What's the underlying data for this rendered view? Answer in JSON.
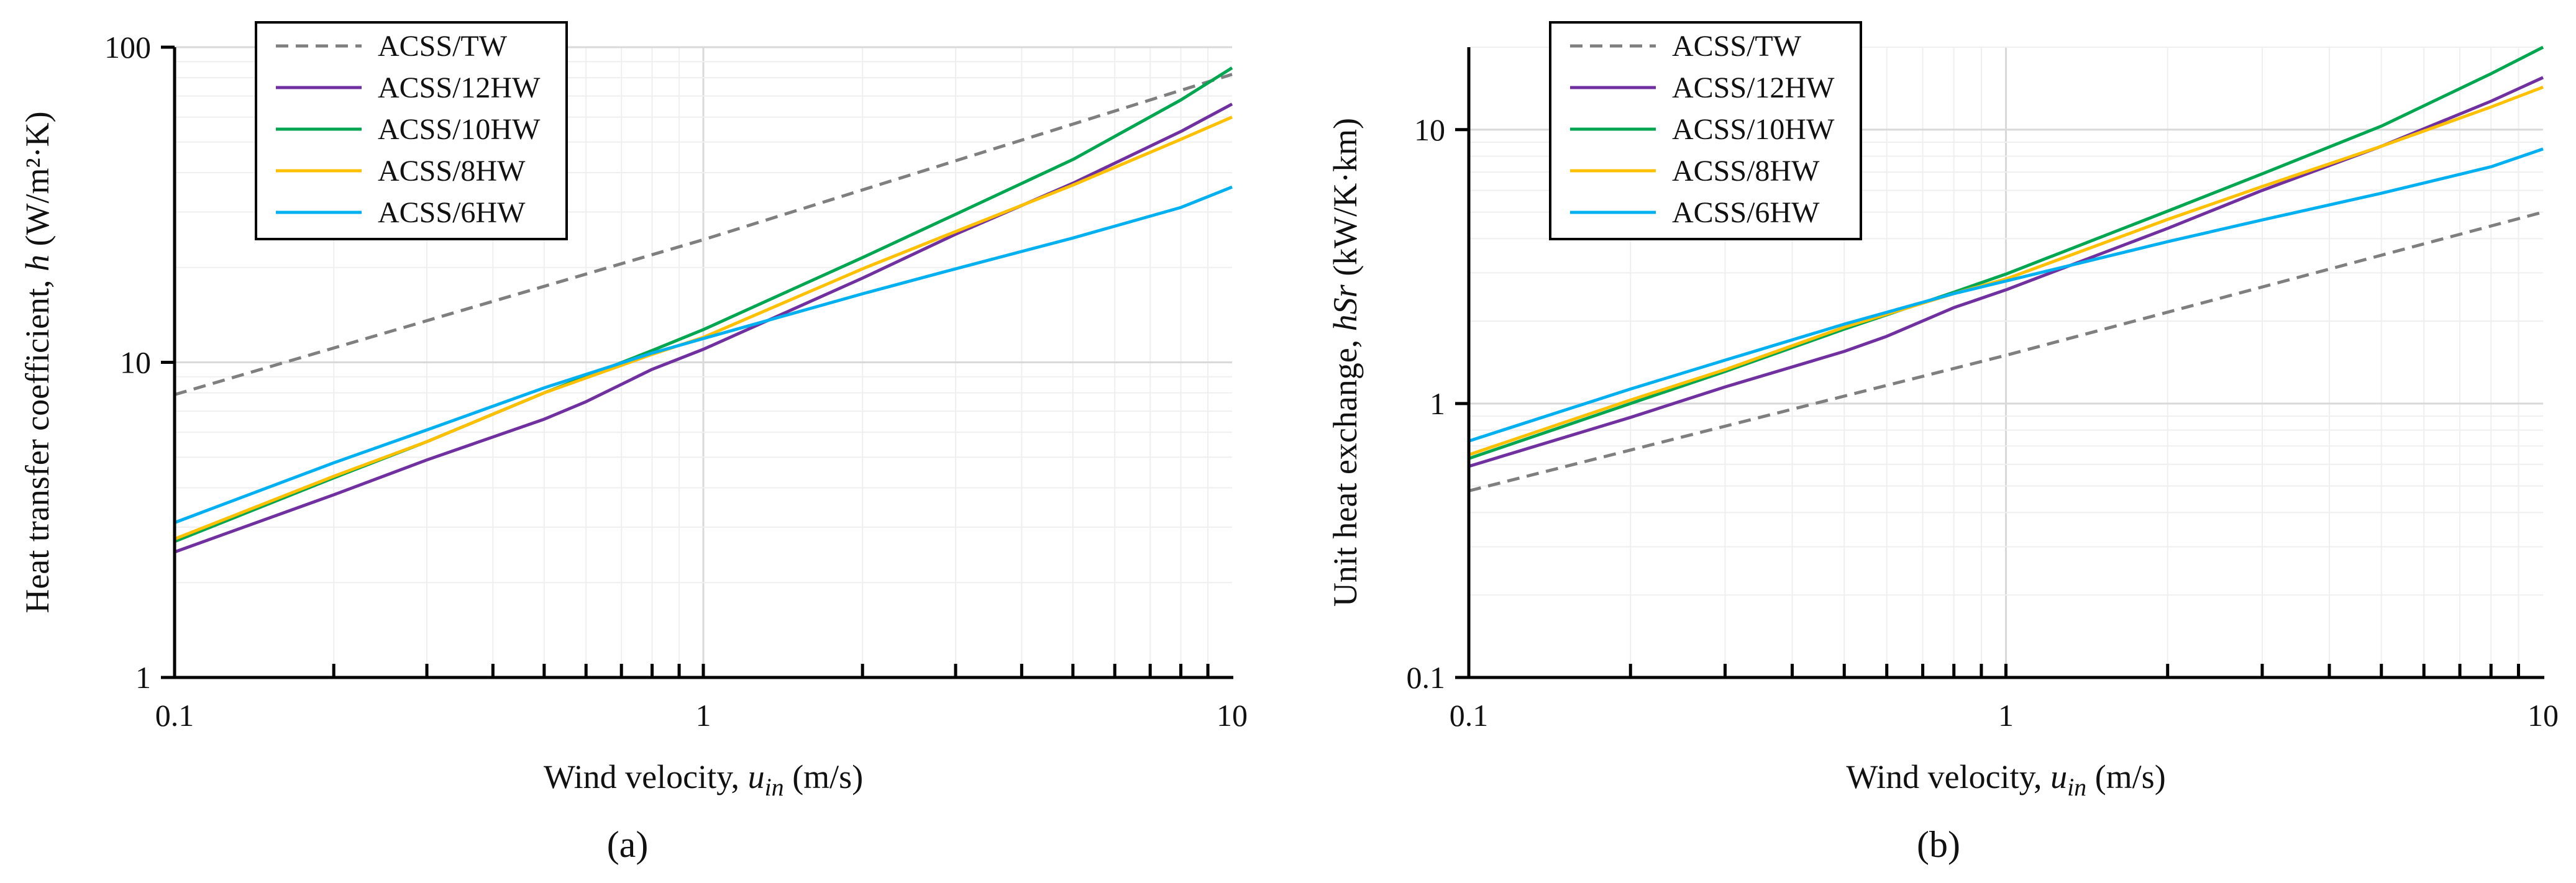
{
  "colors": {
    "tw": "#7f7f7f",
    "hw12": "#7030a0",
    "hw10": "#00a650",
    "hw8": "#ffc000",
    "hw6": "#00b0f0",
    "grid_major": "#d9d9d9",
    "grid_minor": "#efefef",
    "axis": "#000000"
  },
  "chart_data": [
    {
      "type": "line",
      "caption": "(a)",
      "xscale": "log",
      "yscale": "log",
      "xlim": [
        0.1,
        10
      ],
      "ylim": [
        1,
        100
      ],
      "xticks": [
        {
          "v": 0.1,
          "label": "0.1"
        },
        {
          "v": 1,
          "label": "1"
        },
        {
          "v": 10,
          "label": "10"
        }
      ],
      "yticks": [
        {
          "v": 1,
          "label": "1"
        },
        {
          "v": 10,
          "label": "10"
        },
        {
          "v": 100,
          "label": "100"
        }
      ],
      "xlabel": {
        "text": "Wind velocity, ",
        "var": "u",
        "sub": "in",
        "unit": " (m/s)"
      },
      "ylabel": {
        "text": "Heat transfer coefficient, ",
        "var": "h",
        "unit": " (W/m²·K)"
      },
      "legend_position": "top-left",
      "series": [
        {
          "name": "ACSS/TW",
          "color_key": "tw",
          "dash": true,
          "x": [
            0.1,
            1,
            10
          ],
          "y": [
            7.9,
            24.5,
            82
          ]
        },
        {
          "name": "ACSS/12HW",
          "color_key": "hw12",
          "dash": false,
          "x": [
            0.1,
            0.2,
            0.3,
            0.5,
            0.6,
            0.8,
            1,
            2,
            3,
            5,
            8,
            10
          ],
          "y": [
            2.5,
            3.8,
            4.9,
            6.6,
            7.5,
            9.5,
            11,
            18.5,
            25.5,
            37,
            54,
            66
          ]
        },
        {
          "name": "ACSS/10HW",
          "color_key": "hw10",
          "dash": false,
          "x": [
            0.1,
            0.2,
            0.3,
            0.5,
            0.8,
            1,
            2,
            3,
            5,
            8,
            10
          ],
          "y": [
            2.7,
            4.3,
            5.6,
            8,
            10.9,
            12.7,
            21.5,
            29.5,
            44,
            68,
            86
          ]
        },
        {
          "name": "ACSS/8HW",
          "color_key": "hw8",
          "dash": false,
          "x": [
            0.1,
            0.2,
            0.3,
            0.5,
            0.8,
            1,
            2,
            3,
            5,
            8,
            10
          ],
          "y": [
            2.75,
            4.35,
            5.6,
            8,
            10.6,
            12,
            19.8,
            26,
            36.5,
            51,
            60
          ]
        },
        {
          "name": "ACSS/6HW",
          "color_key": "hw6",
          "dash": false,
          "x": [
            0.1,
            0.2,
            0.3,
            0.5,
            0.8,
            1,
            2,
            3,
            5,
            8,
            10
          ],
          "y": [
            3.1,
            4.8,
            6.1,
            8.3,
            10.7,
            11.9,
            16.5,
            19.8,
            24.8,
            31,
            36
          ]
        }
      ]
    },
    {
      "type": "line",
      "caption": "(b)",
      "xscale": "log",
      "yscale": "log",
      "xlim": [
        0.1,
        10
      ],
      "ylim": [
        0.1,
        20
      ],
      "xticks": [
        {
          "v": 0.1,
          "label": "0.1"
        },
        {
          "v": 1,
          "label": "1"
        },
        {
          "v": 10,
          "label": "10"
        }
      ],
      "yticks": [
        {
          "v": 0.1,
          "label": "0.1"
        },
        {
          "v": 1,
          "label": "1"
        },
        {
          "v": 10,
          "label": "10"
        }
      ],
      "xlabel": {
        "text": "Wind velocity, ",
        "var": "u",
        "sub": "in",
        "unit": " (m/s)"
      },
      "ylabel": {
        "text": "Unit heat exchange, ",
        "var": "hSr",
        "unit": " (kW/K·km)"
      },
      "legend_position": "top-left",
      "series": [
        {
          "name": "ACSS/TW",
          "color_key": "tw",
          "dash": true,
          "x": [
            0.1,
            1,
            10
          ],
          "y": [
            0.48,
            1.5,
            5.0
          ]
        },
        {
          "name": "ACSS/12HW",
          "color_key": "hw12",
          "dash": false,
          "x": [
            0.1,
            0.2,
            0.3,
            0.5,
            0.6,
            0.8,
            1,
            2,
            3,
            5,
            8,
            10
          ],
          "y": [
            0.59,
            0.89,
            1.15,
            1.55,
            1.76,
            2.24,
            2.6,
            4.36,
            6.0,
            8.7,
            12.7,
            15.5
          ]
        },
        {
          "name": "ACSS/10HW",
          "color_key": "hw10",
          "dash": false,
          "x": [
            0.1,
            0.2,
            0.3,
            0.5,
            0.8,
            1,
            2,
            3,
            5,
            8,
            10
          ],
          "y": [
            0.63,
            1.0,
            1.31,
            1.87,
            2.55,
            2.97,
            5.04,
            6.9,
            10.3,
            16.0,
            20.0
          ]
        },
        {
          "name": "ACSS/8HW",
          "color_key": "hw8",
          "dash": false,
          "x": [
            0.1,
            0.2,
            0.3,
            0.5,
            0.8,
            1,
            2,
            3,
            5,
            8,
            10
          ],
          "y": [
            0.65,
            1.03,
            1.33,
            1.9,
            2.52,
            2.85,
            4.7,
            6.2,
            8.7,
            12.1,
            14.3
          ]
        },
        {
          "name": "ACSS/6HW",
          "color_key": "hw6",
          "dash": false,
          "x": [
            0.1,
            0.2,
            0.3,
            0.5,
            0.8,
            1,
            2,
            3,
            5,
            8,
            10
          ],
          "y": [
            0.73,
            1.13,
            1.44,
            1.95,
            2.52,
            2.8,
            3.9,
            4.68,
            5.86,
            7.32,
            8.5
          ]
        }
      ]
    }
  ]
}
